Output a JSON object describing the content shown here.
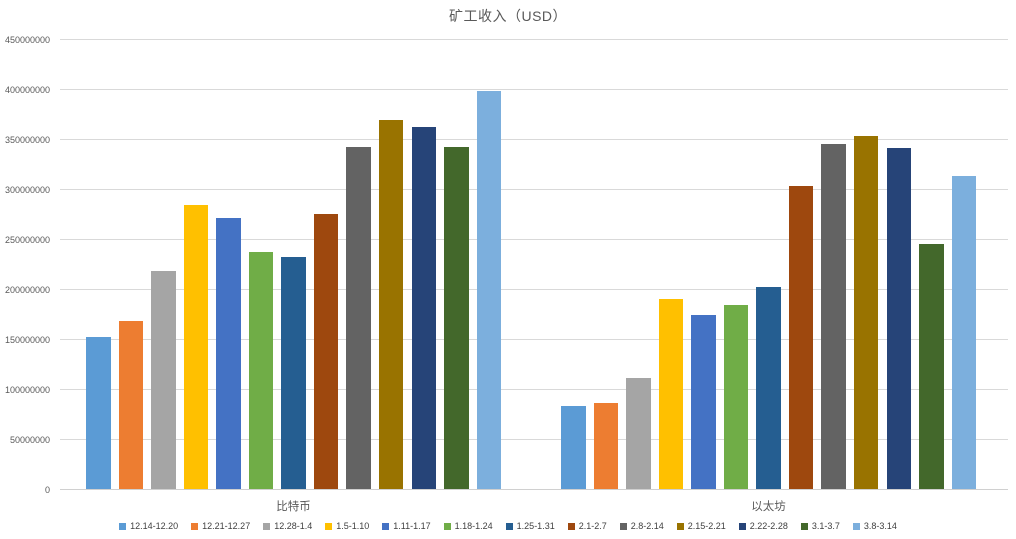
{
  "chart_data": {
    "type": "bar",
    "title": "矿工收入（USD）",
    "categories": [
      "比特币",
      "以太坊"
    ],
    "series": [
      {
        "name": "12.14-12.20",
        "color": "#5B9BD5",
        "values": [
          152000000,
          83000000
        ]
      },
      {
        "name": "12.21-12.27",
        "color": "#ED7D31",
        "values": [
          168000000,
          86000000
        ]
      },
      {
        "name": "12.28-1.4",
        "color": "#A5A5A5",
        "values": [
          218000000,
          111000000
        ]
      },
      {
        "name": "1.5-1.10",
        "color": "#FFC000",
        "values": [
          284000000,
          190000000
        ]
      },
      {
        "name": "1.11-1.17",
        "color": "#4472C4",
        "values": [
          271000000,
          174000000
        ]
      },
      {
        "name": "1.18-1.24",
        "color": "#70AD47",
        "values": [
          237000000,
          184000000
        ]
      },
      {
        "name": "1.25-1.31",
        "color": "#255E91",
        "values": [
          232000000,
          202000000
        ]
      },
      {
        "name": "2.1-2.7",
        "color": "#9E480E",
        "values": [
          275000000,
          303000000
        ]
      },
      {
        "name": "2.8-2.14",
        "color": "#636363",
        "values": [
          342000000,
          345000000
        ]
      },
      {
        "name": "2.15-2.21",
        "color": "#997300",
        "values": [
          369000000,
          353000000
        ]
      },
      {
        "name": "2.22-2.28",
        "color": "#264478",
        "values": [
          362000000,
          341000000
        ]
      },
      {
        "name": "3.1-3.7",
        "color": "#43682B",
        "values": [
          342000000,
          245000000
        ]
      },
      {
        "name": "3.8-3.14",
        "color": "#7CAFDD",
        "values": [
          398000000,
          313000000
        ]
      }
    ],
    "ylim": [
      0,
      450000000
    ],
    "ytick_step": 50000000,
    "y_ticks": [
      "450000000",
      "400000000",
      "350000000",
      "300000000",
      "250000000",
      "200000000",
      "150000000",
      "100000000",
      "50000000",
      "0"
    ],
    "xlabel": "",
    "ylabel": "",
    "grid": true,
    "legend_position": "bottom",
    "colors": {
      "grid": "#D9D9D9",
      "axis_text": "#595959",
      "title_text": "#595959",
      "legend_text": "#404040",
      "background": "#FFFFFF"
    }
  }
}
